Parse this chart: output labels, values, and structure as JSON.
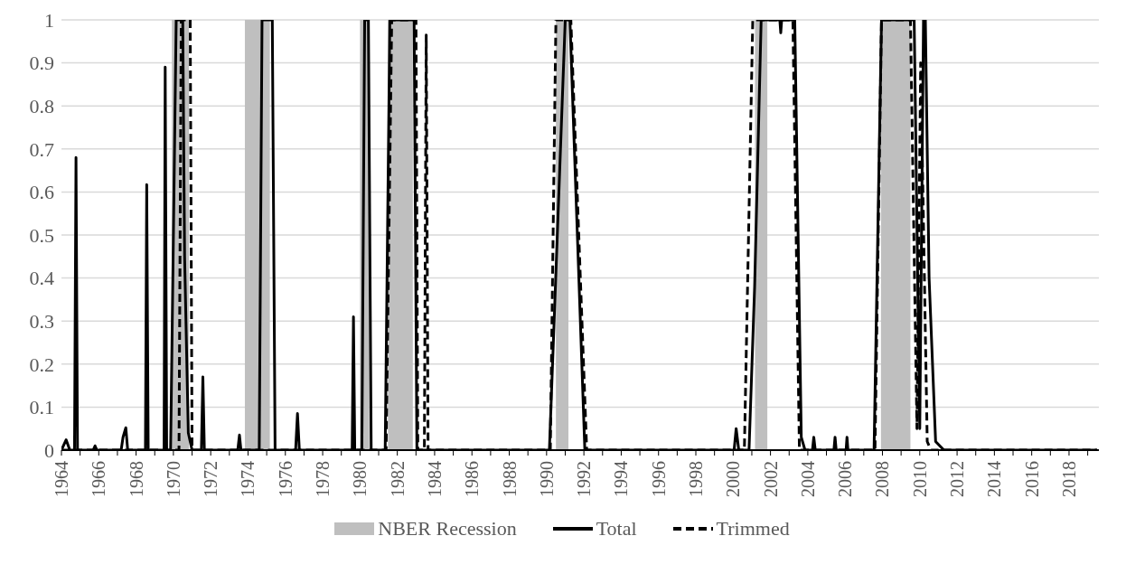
{
  "chart_data": {
    "type": "line",
    "xlim": [
      1964,
      2019.6
    ],
    "xticks": [
      1964,
      {
        "value": 1965,
        "label": null
      },
      1966,
      {
        "value": 1967,
        "label": null
      },
      1968,
      {
        "value": 1969,
        "label": null
      },
      1970,
      {
        "value": 1971,
        "label": null
      },
      1972,
      {
        "value": 1973,
        "label": null
      },
      1974,
      {
        "value": 1975,
        "label": null
      },
      1976,
      {
        "value": 1977,
        "label": null
      },
      1978,
      {
        "value": 1979,
        "label": null
      },
      1980,
      {
        "value": 1981,
        "label": null
      },
      1982,
      {
        "value": 1983,
        "label": null
      },
      1984,
      {
        "value": 1985,
        "label": null
      },
      1986,
      {
        "value": 1987,
        "label": null
      },
      1988,
      {
        "value": 1989,
        "label": null
      },
      1990,
      {
        "value": 1991,
        "label": null
      },
      1992,
      {
        "value": 1993,
        "label": null
      },
      1994,
      {
        "value": 1995,
        "label": null
      },
      1996,
      {
        "value": 1997,
        "label": null
      },
      1998,
      {
        "value": 1999,
        "label": null
      },
      2000,
      {
        "value": 2001,
        "label": null
      },
      2002,
      {
        "value": 2003,
        "label": null
      },
      2004,
      {
        "value": 2005,
        "label": null
      },
      2006,
      {
        "value": 2007,
        "label": null
      },
      2008,
      {
        "value": 2009,
        "label": null
      },
      2010,
      {
        "value": 2011,
        "label": null
      },
      2012,
      {
        "value": 2013,
        "label": null
      },
      2014,
      {
        "value": 2015,
        "label": null
      },
      2016,
      {
        "value": 2017,
        "label": null
      },
      2018,
      {
        "value": 2019,
        "label": null
      }
    ],
    "ylim": [
      0,
      1
    ],
    "yticks": [
      0,
      0.1,
      0.2,
      0.3,
      0.4,
      0.5,
      0.6,
      0.7,
      0.8,
      0.9,
      1
    ],
    "grid": "y",
    "legend": "bottom",
    "marker": "none",
    "bands": [
      {
        "axis": "x",
        "from": 1969.92,
        "to": 1970.83,
        "label": "NBER Recession",
        "color": "#bfbfbf"
      },
      {
        "axis": "x",
        "from": 1973.83,
        "to": 1975.17,
        "color": "#bfbfbf"
      },
      {
        "axis": "x",
        "from": 1980.0,
        "to": 1980.5,
        "color": "#bfbfbf"
      },
      {
        "axis": "x",
        "from": 1981.5,
        "to": 1982.83,
        "color": "#bfbfbf"
      },
      {
        "axis": "x",
        "from": 1990.5,
        "to": 1991.17,
        "color": "#bfbfbf"
      },
      {
        "axis": "x",
        "from": 2001.17,
        "to": 2001.83,
        "color": "#bfbfbf"
      },
      {
        "axis": "x",
        "from": 2007.92,
        "to": 2009.5,
        "color": "#bfbfbf"
      }
    ],
    "series": [
      {
        "name": "Total",
        "color": "#000000",
        "line_style": "solid",
        "x": [
          1964,
          1964.25,
          1964.45,
          1964.7,
          1964.78,
          1964.86,
          1965.7,
          1965.8,
          1965.9,
          1967.2,
          1967.3,
          1967.45,
          1967.55,
          1968.5,
          1968.57,
          1968.65,
          1969.5,
          1969.56,
          1969.64,
          1969.85,
          1970.15,
          1970.5,
          1970.6,
          1970.8,
          1971,
          1971.5,
          1971.58,
          1971.66,
          1973.45,
          1973.54,
          1973.62,
          1974.6,
          1974.75,
          1975.3,
          1975.45,
          1976.55,
          1976.65,
          1976.75,
          1979.58,
          1979.65,
          1979.72,
          1980.1,
          1980.25,
          1980.45,
          1980.6,
          1981.35,
          1981.6,
          1982.9,
          1983.05,
          1990.15,
          1991,
          1991.25,
          1992.05,
          2000.05,
          2000.16,
          2000.3,
          2000.85,
          2001.15,
          2001.5,
          2002.5,
          2002.55,
          2002.6,
          2003.3,
          2003.65,
          2003.85,
          2004.25,
          2004.32,
          2004.4,
          2005.4,
          2005.46,
          2005.52,
          2006.05,
          2006.1,
          2006.15,
          2007.55,
          2007.95,
          2009.7,
          2010,
          2010.2,
          2010.3,
          2010.5,
          2010.85,
          2011.3,
          2019.5
        ],
        "values": [
          0,
          0.024,
          0,
          0,
          0.68,
          0,
          0,
          0.01,
          0,
          0,
          0.03,
          0.052,
          0,
          0,
          0.617,
          0,
          0,
          0.89,
          0,
          0,
          1,
          1,
          0.45,
          0.04,
          0,
          0,
          0.17,
          0,
          0,
          0.035,
          0,
          0,
          1,
          1,
          0,
          0,
          0.085,
          0,
          0,
          0.31,
          0,
          0,
          1,
          1,
          0,
          0,
          1,
          1,
          0,
          0,
          1,
          1,
          0,
          0,
          0.05,
          0,
          0,
          0.38,
          1,
          1,
          0.97,
          1,
          1,
          0.03,
          0,
          0,
          0.03,
          0,
          0,
          0.03,
          0,
          0,
          0.03,
          0,
          0,
          1,
          1,
          0.05,
          1,
          1,
          0.4,
          0.02,
          0,
          0
        ]
      },
      {
        "name": "Trimmed",
        "color": "#000000",
        "line_style": "dashed",
        "x": [
          1964,
          1970.3,
          1970.42,
          1970.9,
          1971,
          1981.4,
          1981.7,
          1983,
          1983.1,
          1983.45,
          1983.55,
          1983.65,
          1990.2,
          1990.5,
          1991.3,
          1992.15,
          2000.6,
          2001.05,
          2003.2,
          2003.55,
          2007.6,
          2007.95,
          2009.5,
          2009.85,
          2010.05,
          2010.4,
          2010.6,
          2019.5
        ],
        "values": [
          0,
          0,
          1,
          1,
          0,
          0,
          1,
          1,
          0,
          0,
          0.965,
          0,
          0,
          1,
          1,
          0,
          0,
          1,
          1,
          0,
          0,
          1,
          1,
          0.05,
          0.9,
          0.02,
          0,
          0
        ]
      }
    ]
  }
}
